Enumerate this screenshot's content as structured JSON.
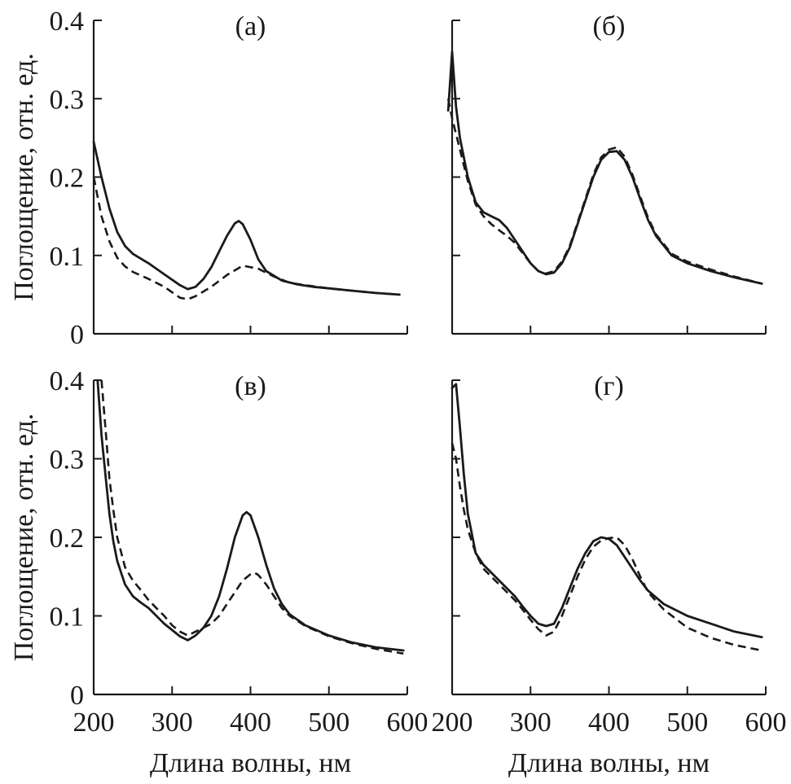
{
  "chart_data": [
    {
      "type": "line",
      "panel_label": "(а)",
      "xlim": [
        200,
        600
      ],
      "ylim": [
        0,
        0.4
      ],
      "yticks": [
        0,
        0.1,
        0.2,
        0.3,
        0.4
      ],
      "ytick_labels": [
        "0",
        "0.1",
        "0.2",
        "0.3",
        "0.4"
      ],
      "show_ytick_labels": true,
      "show_xtick_labels": false,
      "ylabel": "Поглощение, отн. ед.",
      "xlabel": "",
      "series": [
        {
          "name": "solid",
          "style": "solid",
          "x": [
            200,
            210,
            220,
            230,
            240,
            250,
            270,
            290,
            310,
            320,
            330,
            340,
            350,
            360,
            370,
            380,
            385,
            390,
            400,
            410,
            420,
            440,
            460,
            480,
            500,
            530,
            560,
            590
          ],
          "y": [
            0.245,
            0.2,
            0.16,
            0.13,
            0.112,
            0.102,
            0.09,
            0.076,
            0.062,
            0.057,
            0.06,
            0.07,
            0.085,
            0.105,
            0.125,
            0.141,
            0.144,
            0.14,
            0.12,
            0.095,
            0.08,
            0.068,
            0.063,
            0.06,
            0.058,
            0.055,
            0.052,
            0.05
          ]
        },
        {
          "name": "dashed",
          "style": "dashed",
          "x": [
            200,
            210,
            220,
            230,
            240,
            250,
            270,
            290,
            310,
            320,
            330,
            350,
            370,
            390,
            410,
            430,
            450,
            470,
            500,
            530,
            560,
            590
          ],
          "y": [
            0.2,
            0.15,
            0.118,
            0.097,
            0.086,
            0.079,
            0.07,
            0.06,
            0.046,
            0.044,
            0.048,
            0.06,
            0.075,
            0.087,
            0.083,
            0.073,
            0.065,
            0.062,
            0.058,
            0.055,
            0.052,
            0.05
          ]
        }
      ]
    },
    {
      "type": "line",
      "panel_label": "(б)",
      "xlim": [
        200,
        600
      ],
      "ylim": [
        0,
        0.4
      ],
      "yticks": [
        0,
        0.1,
        0.2,
        0.3,
        0.4
      ],
      "show_ytick_labels": false,
      "show_xtick_labels": false,
      "ylabel": "",
      "xlabel": "",
      "series": [
        {
          "name": "solid",
          "style": "solid",
          "x": [
            195,
            200,
            205,
            210,
            215,
            220,
            230,
            240,
            250,
            260,
            270,
            280,
            290,
            300,
            310,
            320,
            330,
            340,
            350,
            360,
            370,
            380,
            390,
            400,
            410,
            420,
            430,
            440,
            450,
            460,
            480,
            500,
            530,
            560,
            595
          ],
          "y": [
            0.285,
            0.36,
            0.29,
            0.25,
            0.225,
            0.2,
            0.168,
            0.155,
            0.15,
            0.145,
            0.135,
            0.12,
            0.105,
            0.09,
            0.08,
            0.076,
            0.078,
            0.09,
            0.11,
            0.14,
            0.17,
            0.2,
            0.222,
            0.232,
            0.233,
            0.222,
            0.2,
            0.172,
            0.145,
            0.125,
            0.1,
            0.09,
            0.08,
            0.072,
            0.064
          ]
        },
        {
          "name": "dashed",
          "style": "dashed",
          "x": [
            195,
            200,
            205,
            210,
            215,
            220,
            230,
            240,
            250,
            260,
            270,
            280,
            290,
            300,
            310,
            320,
            330,
            340,
            350,
            360,
            370,
            380,
            390,
            400,
            410,
            420,
            430,
            440,
            450,
            460,
            480,
            500,
            530,
            560,
            595
          ],
          "y": [
            0.3,
            0.275,
            0.255,
            0.235,
            0.215,
            0.195,
            0.165,
            0.15,
            0.14,
            0.132,
            0.125,
            0.116,
            0.103,
            0.09,
            0.08,
            0.077,
            0.08,
            0.092,
            0.112,
            0.142,
            0.172,
            0.203,
            0.225,
            0.235,
            0.238,
            0.226,
            0.203,
            0.175,
            0.148,
            0.127,
            0.102,
            0.092,
            0.082,
            0.073,
            0.064
          ]
        }
      ]
    },
    {
      "type": "line",
      "panel_label": "(в)",
      "xlim": [
        200,
        600
      ],
      "ylim": [
        0,
        0.4
      ],
      "yticks": [
        0,
        0.1,
        0.2,
        0.3,
        0.4
      ],
      "ytick_labels": [
        "0",
        "0.1",
        "0.2",
        "0.3",
        "0.4"
      ],
      "xticks": [
        200,
        300,
        400,
        500,
        600
      ],
      "xtick_labels": [
        "200",
        "300",
        "400",
        "500",
        "600"
      ],
      "show_ytick_labels": true,
      "show_xtick_labels": true,
      "ylabel": "Поглощение, отн. ед.",
      "xlabel": "Длина волны, нм",
      "series": [
        {
          "name": "solid",
          "style": "solid",
          "x": [
            205,
            210,
            215,
            220,
            225,
            230,
            240,
            250,
            260,
            270,
            280,
            290,
            300,
            310,
            320,
            330,
            340,
            350,
            360,
            370,
            380,
            390,
            395,
            400,
            410,
            420,
            430,
            440,
            450,
            470,
            500,
            530,
            560,
            595
          ],
          "y": [
            0.4,
            0.33,
            0.28,
            0.23,
            0.195,
            0.17,
            0.14,
            0.125,
            0.117,
            0.11,
            0.1,
            0.09,
            0.082,
            0.074,
            0.069,
            0.075,
            0.085,
            0.1,
            0.125,
            0.16,
            0.2,
            0.228,
            0.232,
            0.228,
            0.2,
            0.165,
            0.135,
            0.115,
            0.102,
            0.088,
            0.075,
            0.066,
            0.06,
            0.056
          ]
        },
        {
          "name": "dashed",
          "style": "dashed",
          "x": [
            210,
            215,
            220,
            225,
            230,
            240,
            250,
            260,
            270,
            280,
            290,
            300,
            310,
            320,
            330,
            340,
            350,
            360,
            370,
            380,
            390,
            400,
            405,
            410,
            420,
            430,
            440,
            450,
            470,
            500,
            530,
            560,
            595
          ],
          "y": [
            0.4,
            0.34,
            0.275,
            0.235,
            0.2,
            0.162,
            0.145,
            0.133,
            0.12,
            0.11,
            0.1,
            0.088,
            0.08,
            0.075,
            0.08,
            0.085,
            0.09,
            0.1,
            0.115,
            0.13,
            0.145,
            0.153,
            0.155,
            0.152,
            0.14,
            0.125,
            0.11,
            0.1,
            0.087,
            0.074,
            0.065,
            0.058,
            0.052
          ]
        }
      ]
    },
    {
      "type": "line",
      "panel_label": "(г)",
      "xlim": [
        200,
        600
      ],
      "ylim": [
        0,
        0.4
      ],
      "yticks": [
        0,
        0.1,
        0.2,
        0.3,
        0.4
      ],
      "xticks": [
        200,
        300,
        400,
        500,
        600
      ],
      "xtick_labels": [
        "200",
        "300",
        "400",
        "500",
        "600"
      ],
      "show_ytick_labels": false,
      "show_xtick_labels": true,
      "ylabel": "",
      "xlabel": "Длина волны, нм",
      "series": [
        {
          "name": "solid",
          "style": "solid",
          "x": [
            200,
            205,
            210,
            215,
            220,
            230,
            240,
            250,
            260,
            270,
            280,
            290,
            300,
            310,
            320,
            330,
            340,
            350,
            360,
            370,
            380,
            390,
            400,
            410,
            420,
            430,
            440,
            450,
            470,
            500,
            530,
            560,
            595
          ],
          "y": [
            0.39,
            0.395,
            0.34,
            0.28,
            0.23,
            0.18,
            0.165,
            0.155,
            0.145,
            0.135,
            0.125,
            0.112,
            0.1,
            0.09,
            0.087,
            0.09,
            0.11,
            0.135,
            0.16,
            0.18,
            0.195,
            0.2,
            0.198,
            0.19,
            0.175,
            0.16,
            0.145,
            0.132,
            0.115,
            0.1,
            0.09,
            0.08,
            0.073
          ]
        },
        {
          "name": "dashed",
          "style": "dashed",
          "x": [
            200,
            205,
            210,
            215,
            220,
            230,
            240,
            250,
            260,
            270,
            280,
            290,
            300,
            310,
            320,
            330,
            340,
            350,
            360,
            370,
            380,
            390,
            400,
            410,
            420,
            430,
            440,
            450,
            470,
            500,
            530,
            560,
            595
          ],
          "y": [
            0.32,
            0.3,
            0.265,
            0.235,
            0.21,
            0.18,
            0.16,
            0.15,
            0.14,
            0.13,
            0.12,
            0.108,
            0.095,
            0.083,
            0.075,
            0.08,
            0.1,
            0.125,
            0.15,
            0.172,
            0.188,
            0.196,
            0.199,
            0.2,
            0.19,
            0.172,
            0.15,
            0.13,
            0.108,
            0.085,
            0.072,
            0.063,
            0.056
          ]
        }
      ]
    }
  ]
}
